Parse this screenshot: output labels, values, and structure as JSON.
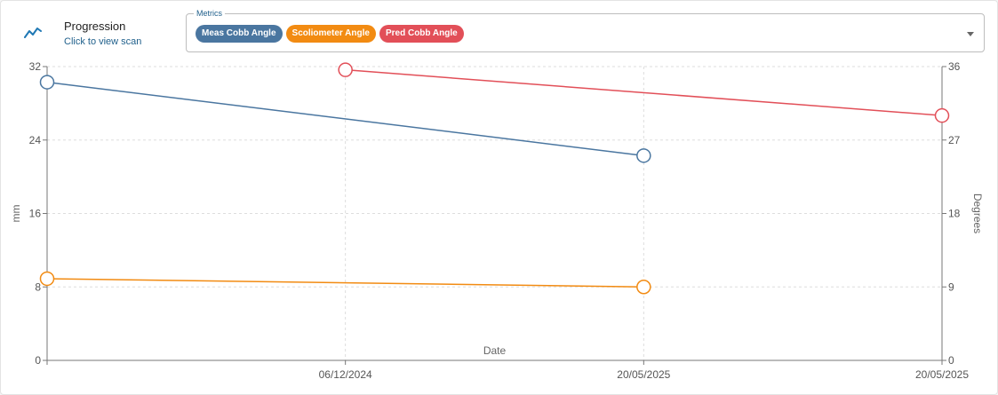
{
  "header": {
    "title": "Progression",
    "subtitle": "Click to view scan",
    "icon": "trending-line-icon"
  },
  "metrics": {
    "legend": "Metrics",
    "chips": [
      {
        "label": "Meas Cobb Angle",
        "color": "#4a76a0"
      },
      {
        "label": "Scoliometer Angle",
        "color": "#f28b12"
      },
      {
        "label": "Pred Cobb Angle",
        "color": "#e24f58"
      }
    ]
  },
  "chart_data": {
    "type": "line",
    "xlabel": "Date",
    "categories": [
      "",
      "06/12/2024",
      "20/05/2025",
      "20/05/2025"
    ],
    "y_left": {
      "label": "mm",
      "range": [
        0,
        32
      ],
      "ticks": [
        0,
        8,
        16,
        24,
        32
      ]
    },
    "y_right": {
      "label": "Degrees",
      "range": [
        0,
        36
      ],
      "ticks": [
        0,
        9,
        18,
        27,
        36
      ]
    },
    "grid": true,
    "series": [
      {
        "name": "Meas Cobb Angle",
        "axis": "left",
        "color": "#4a76a0",
        "points": [
          {
            "x": 0,
            "y": 30.3
          },
          {
            "x": 2,
            "y": 22.3
          }
        ]
      },
      {
        "name": "Scoliometer Angle",
        "axis": "left",
        "color": "#f28b12",
        "points": [
          {
            "x": 0,
            "y": 8.9
          },
          {
            "x": 2,
            "y": 8.0
          }
        ]
      },
      {
        "name": "Pred Cobb Angle",
        "axis": "right",
        "color": "#e24f58",
        "points": [
          {
            "x": 1,
            "y": 35.6
          },
          {
            "x": 3,
            "y": 30.0
          }
        ]
      }
    ]
  }
}
